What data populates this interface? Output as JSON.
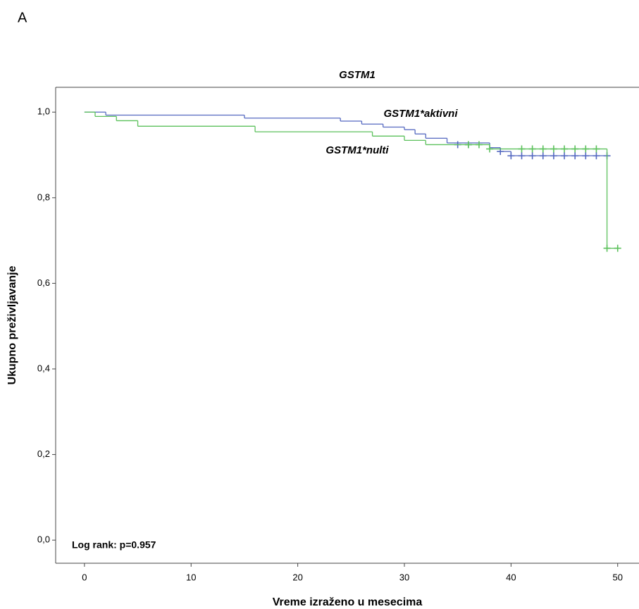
{
  "panel_label": "A",
  "chart_data": {
    "type": "kaplan-meier",
    "title": "GSTM1",
    "xlabel": "Vreme izraženo u mesecima",
    "ylabel": "Ukupno preživljavanje",
    "annotation": "Log rank: p=0.957",
    "xlim": [
      -2.7,
      52
    ],
    "ylim": [
      -0.054,
      1.058
    ],
    "xticks": [
      0,
      10,
      20,
      30,
      40,
      50
    ],
    "yticks": [
      {
        "value": 0,
        "label": "0,0"
      },
      {
        "value": 0.2,
        "label": "0,2"
      },
      {
        "value": 0.4,
        "label": "0,4"
      },
      {
        "value": 0.6,
        "label": "0,6"
      },
      {
        "value": 0.8,
        "label": "0,8"
      },
      {
        "value": 1,
        "label": "1,0"
      }
    ],
    "series": [
      {
        "name": "GSTM1*aktivni",
        "color": "#5468c0",
        "x": [
          0,
          2,
          15,
          24,
          26,
          28,
          30,
          31,
          32,
          34,
          38,
          39,
          40,
          49
        ],
        "values": [
          1.0,
          0.993,
          0.986,
          0.979,
          0.972,
          0.965,
          0.959,
          0.949,
          0.939,
          0.928,
          0.917,
          0.908,
          0.898,
          0.898
        ],
        "censored_x": [
          35,
          36,
          39,
          40,
          41,
          42,
          43,
          44,
          45,
          46,
          47,
          48,
          49
        ],
        "censored_values": [
          0.924,
          0.924,
          0.908,
          0.898,
          0.898,
          0.898,
          0.898,
          0.898,
          0.898,
          0.898,
          0.898,
          0.898,
          0.898
        ]
      },
      {
        "name": "GSTM1*nulti",
        "color": "#5cc15c",
        "x": [
          0,
          1,
          3,
          5,
          16,
          27,
          30,
          32,
          38,
          49,
          50
        ],
        "values": [
          1.0,
          0.99,
          0.98,
          0.967,
          0.954,
          0.944,
          0.934,
          0.924,
          0.914,
          0.682,
          0.682
        ],
        "censored_x": [
          36,
          37,
          38,
          41,
          42,
          43,
          44,
          45,
          46,
          47,
          48,
          49,
          50
        ],
        "censored_values": [
          0.924,
          0.924,
          0.914,
          0.914,
          0.914,
          0.914,
          0.914,
          0.914,
          0.914,
          0.914,
          0.914,
          0.682,
          0.682
        ]
      }
    ]
  }
}
